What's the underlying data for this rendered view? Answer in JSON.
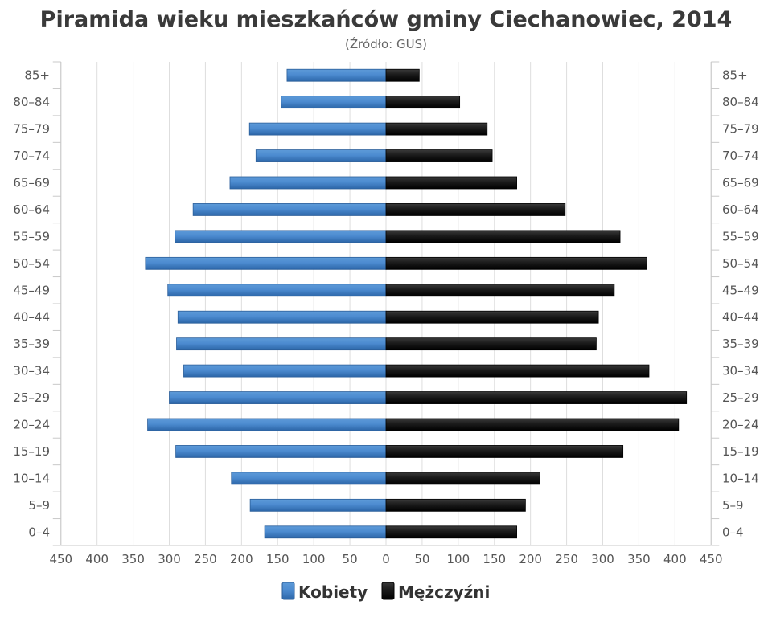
{
  "chart_data": {
    "type": "bar",
    "orientation": "horizontal",
    "title": "Piramida wieku mieszkańców gminy Ciechanowiec, 2014",
    "subtitle": "(Źródło: GUS)",
    "categories": [
      "0–4",
      "5–9",
      "10–14",
      "15–19",
      "20–24",
      "25–29",
      "30–34",
      "35–39",
      "40–44",
      "45–49",
      "50–54",
      "55–59",
      "60–64",
      "65–69",
      "70–74",
      "75–79",
      "80–84",
      "85+"
    ],
    "series": [
      {
        "name": "Kobiety",
        "side": "left",
        "color": "#3a78c2",
        "values": [
          168,
          188,
          214,
          291,
          330,
          300,
          280,
          290,
          288,
          302,
          333,
          292,
          267,
          216,
          180,
          189,
          145,
          137
        ]
      },
      {
        "name": "Mężczyźni",
        "side": "right",
        "color": "#111111",
        "values": [
          181,
          193,
          213,
          328,
          405,
          416,
          364,
          291,
          294,
          316,
          361,
          324,
          248,
          181,
          147,
          140,
          102,
          46
        ]
      }
    ],
    "xlim": [
      -450,
      450
    ],
    "xticks": [
      450,
      400,
      350,
      300,
      250,
      200,
      150,
      100,
      50,
      0,
      50,
      100,
      150,
      200,
      250,
      300,
      350,
      400,
      450
    ],
    "grid": true,
    "legend_position": "bottom"
  }
}
